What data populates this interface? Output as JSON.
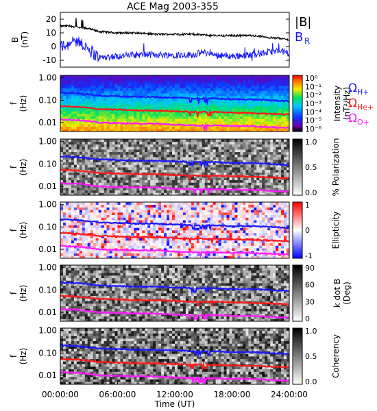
{
  "title": "ACE Mag 2003-355",
  "xlabel": "Time (UT)",
  "x_ticks": [
    "00:00:00",
    "06:00:00",
    "12:00:00",
    "18:00:00",
    "24:00:00"
  ],
  "panel1": {
    "ylabel": "B",
    "yunit": "(nT)",
    "y_ticks": [
      "20",
      "10",
      "0",
      "-10"
    ],
    "legend": [
      {
        "label": "|B|",
        "color": "#000000"
      },
      {
        "label": "B",
        "sub": "R",
        "color": "#1a1aff"
      }
    ]
  },
  "freq_axis": {
    "ylabel": "f",
    "yunit": "(Hz)",
    "ticks": [
      "1.00",
      "0.10",
      "0.01"
    ]
  },
  "gyro_legend": [
    {
      "symbol": "Ω",
      "sub": "H+",
      "color": "#1a1aff"
    },
    {
      "symbol": "Ω",
      "sub": "He+",
      "color": "#ff1a1a"
    },
    {
      "symbol": "Ω",
      "sub": "O+",
      "color": "#ff1aff"
    }
  ],
  "colorbars": [
    {
      "label": "Intensity",
      "unit": "(nT²/Hz)",
      "ticks": [
        "10⁰",
        "10⁻¹",
        "10⁻²",
        "10⁻³",
        "10⁻⁴",
        "10⁻⁵",
        "10⁻⁶"
      ],
      "scheme": "rainbow"
    },
    {
      "label": "% Polarization",
      "unit": "",
      "ticks": [
        "1.0",
        "0.5",
        "0.0"
      ],
      "scheme": "gray"
    },
    {
      "label": "Ellipticity",
      "unit": "",
      "ticks": [
        "1",
        "0",
        "-1"
      ],
      "scheme": "bwr"
    },
    {
      "label": "k dot B",
      "unit": "(Deg)",
      "ticks": [
        "90",
        "60",
        "30",
        "0"
      ],
      "scheme": "gray"
    },
    {
      "label": "Coherency",
      "unit": "",
      "ticks": [
        "1.0",
        "0.5",
        "0.0"
      ],
      "scheme": "gray"
    }
  ],
  "chart_data": [
    {
      "type": "line",
      "title": "ACE Mag 2003-355",
      "ylabel": "B (nT)",
      "ylim": [
        -15,
        25
      ],
      "xlim": [
        0,
        24
      ],
      "series": [
        {
          "name": "|B|",
          "x": [
            0,
            1,
            2,
            3,
            4,
            6,
            8,
            10,
            12,
            14,
            15,
            16,
            18,
            20,
            21,
            22,
            23,
            24
          ],
          "y": [
            15,
            15,
            14,
            13,
            11,
            10,
            10,
            9,
            9,
            9,
            8.5,
            8,
            8,
            8,
            7.5,
            6.5,
            6,
            5
          ]
        },
        {
          "name": "B_R",
          "x": [
            0,
            1,
            2,
            3,
            4,
            6,
            8,
            10,
            12,
            14,
            15,
            16,
            18,
            20,
            21,
            22,
            23,
            24
          ],
          "y": [
            0,
            2,
            3,
            -2,
            -8,
            -7,
            -6,
            -6,
            -6,
            -6,
            -4,
            -6,
            -7,
            -6,
            -5,
            -4,
            -3,
            -5
          ]
        }
      ]
    },
    {
      "type": "heatmap",
      "panels": [
        "Intensity",
        "% Polarization",
        "Ellipticity",
        "k dot B",
        "Coherency"
      ],
      "ylabel": "f (Hz)",
      "yscale": "log",
      "ylim": [
        0.004,
        1.3
      ],
      "xlim": [
        0,
        24
      ],
      "overlays": [
        {
          "name": "Ω_H+",
          "x": [
            0,
            2,
            4,
            6,
            8,
            10,
            12,
            14,
            16,
            18,
            20,
            22,
            24
          ],
          "y": [
            0.22,
            0.2,
            0.16,
            0.15,
            0.14,
            0.14,
            0.13,
            0.12,
            0.12,
            0.11,
            0.11,
            0.1,
            0.09
          ]
        },
        {
          "name": "Ω_He+",
          "x": [
            0,
            2,
            4,
            6,
            8,
            10,
            12,
            14,
            16,
            18,
            20,
            22,
            24
          ],
          "y": [
            0.055,
            0.05,
            0.04,
            0.038,
            0.035,
            0.035,
            0.032,
            0.03,
            0.03,
            0.028,
            0.027,
            0.025,
            0.023
          ]
        },
        {
          "name": "Ω_O+",
          "x": [
            0,
            2,
            4,
            6,
            8,
            10,
            12,
            14,
            16,
            18,
            20,
            22,
            24
          ],
          "y": [
            0.014,
            0.013,
            0.01,
            0.0095,
            0.009,
            0.009,
            0.008,
            0.0075,
            0.0075,
            0.007,
            0.007,
            0.0063,
            0.0058
          ]
        }
      ]
    }
  ]
}
